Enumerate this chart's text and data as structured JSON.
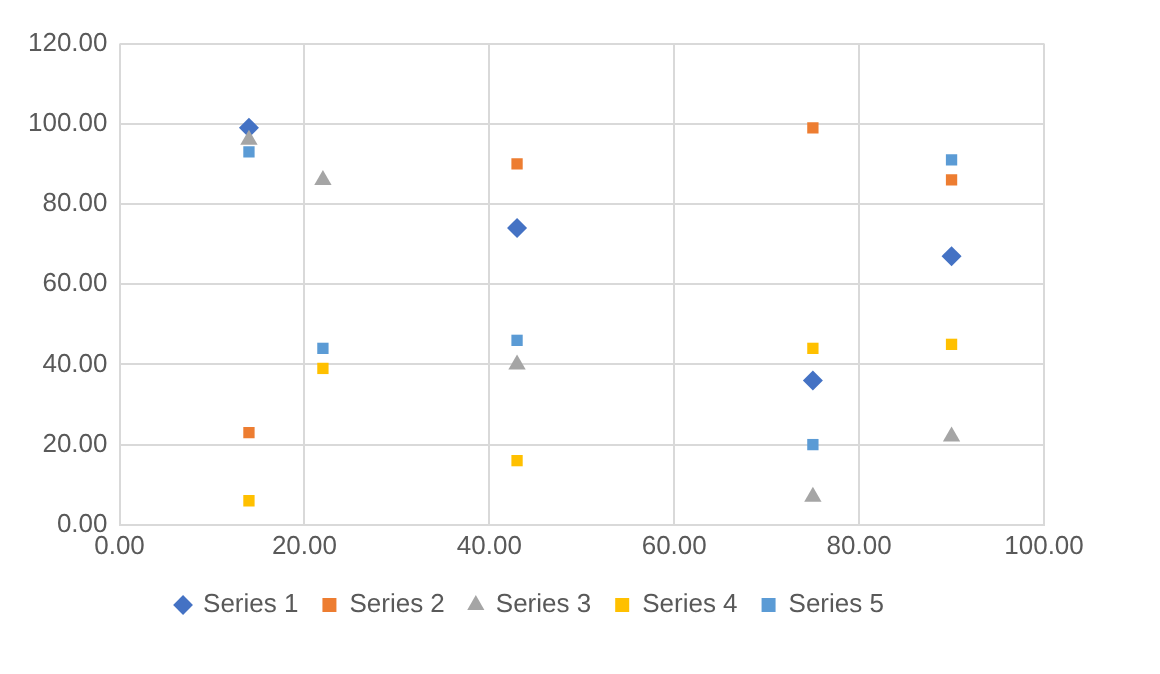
{
  "chart_data": {
    "type": "scatter",
    "x": [
      14,
      22,
      43,
      75,
      90
    ],
    "series": [
      {
        "name": "Series 1",
        "color": "#4472c4",
        "marker": "diamond",
        "values": [
          99,
          null,
          74,
          36,
          67
        ]
      },
      {
        "name": "Series 2",
        "color": "#ed7d31",
        "marker": "square",
        "values": [
          23,
          null,
          90,
          99,
          86
        ]
      },
      {
        "name": "Series 3",
        "color": "#a5a5a5",
        "marker": "triangle",
        "values": [
          96,
          86,
          40,
          7,
          22
        ]
      },
      {
        "name": "Series 4",
        "color": "#ffc000",
        "marker": "square",
        "values": [
          6,
          39,
          16,
          44,
          45
        ]
      },
      {
        "name": "Series 5",
        "color": "#5b9bd5",
        "marker": "square",
        "values": [
          93,
          44,
          46,
          20,
          91
        ]
      }
    ],
    "xlim": [
      0,
      100
    ],
    "xticks": [
      {
        "value": 0,
        "label": "0.00"
      },
      {
        "value": 20,
        "label": "20.00"
      },
      {
        "value": 40,
        "label": "40.00"
      },
      {
        "value": 60,
        "label": "60.00"
      },
      {
        "value": 80,
        "label": "80.00"
      },
      {
        "value": 100,
        "label": "100.00"
      }
    ],
    "ylim": [
      0,
      120
    ],
    "yticks": [
      {
        "value": 0,
        "label": "0.00"
      },
      {
        "value": 20,
        "label": "20.00"
      },
      {
        "value": 40,
        "label": "40.00"
      },
      {
        "value": 60,
        "label": "60.00"
      },
      {
        "value": 80,
        "label": "80.00"
      },
      {
        "value": 100,
        "label": "100.00"
      },
      {
        "value": 120,
        "label": "120.00"
      }
    ],
    "grid": true,
    "legend": "bottom"
  }
}
